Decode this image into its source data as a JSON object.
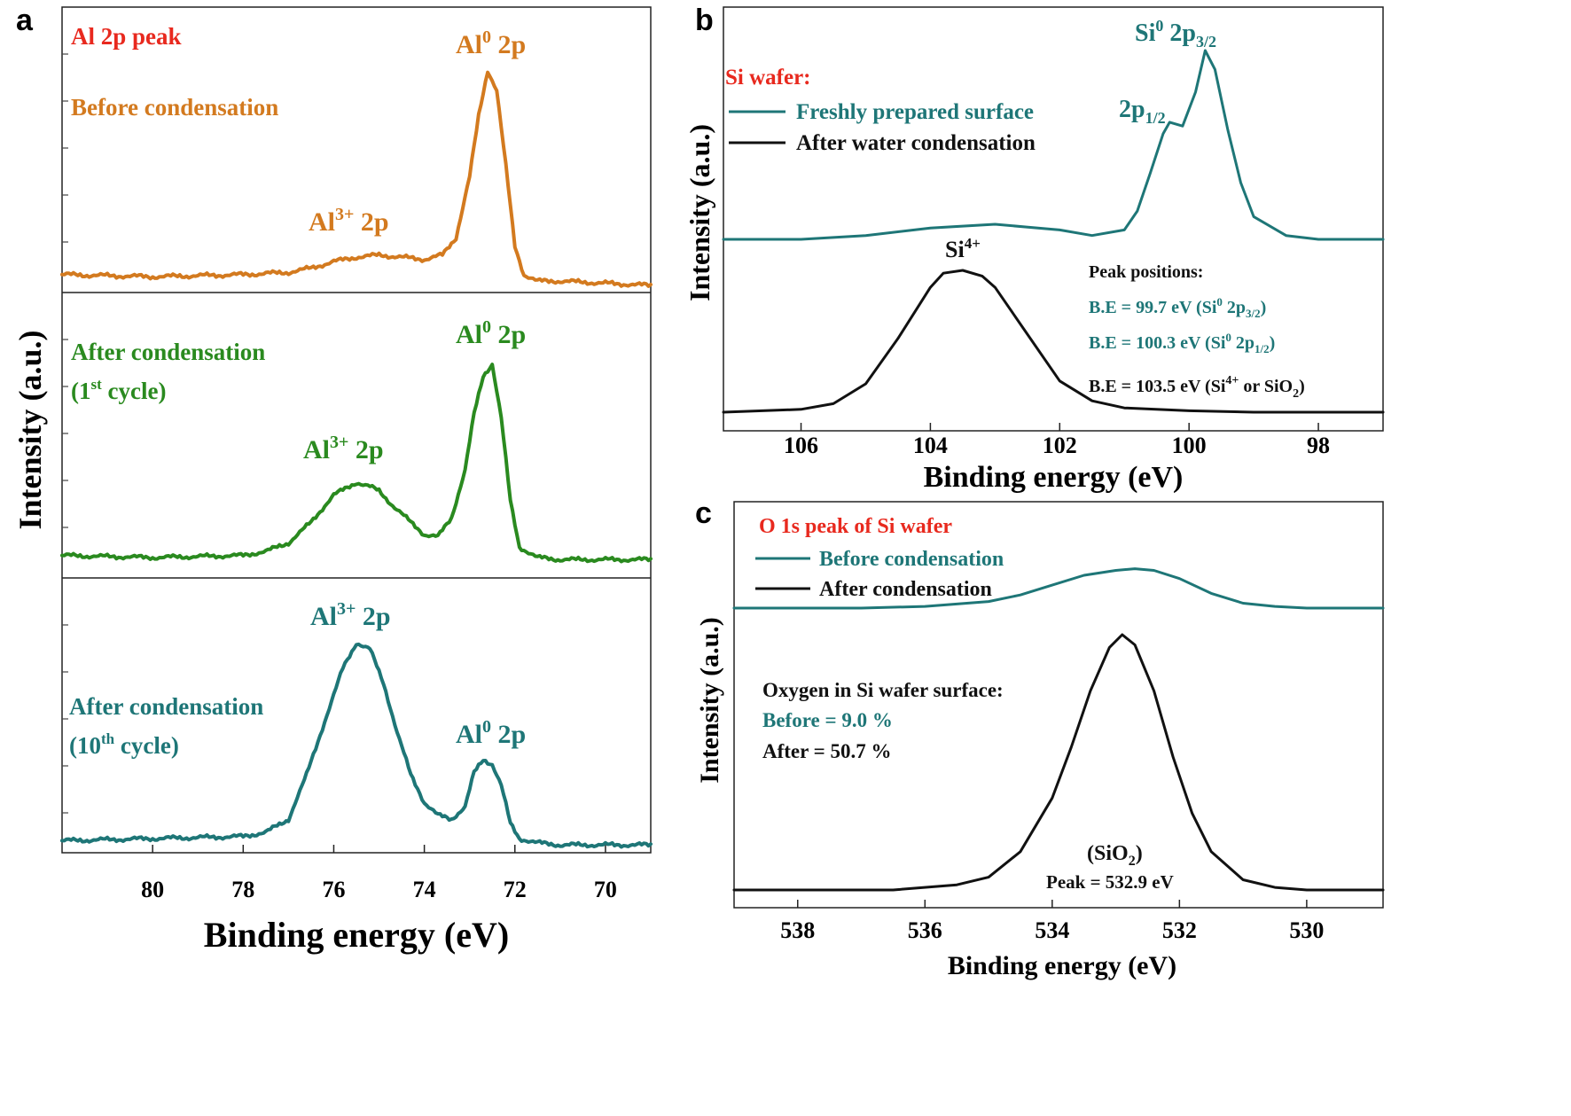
{
  "colors": {
    "orange": "#d37a1f",
    "green": "#2a8a1f",
    "teal": "#1e7677",
    "black": "#111111",
    "red": "#e8291e"
  },
  "panels": {
    "a": "a",
    "b": "b",
    "c": "c"
  },
  "chart_data": [
    {
      "id": "a",
      "type": "line",
      "xlabel": "Binding energy (eV)",
      "ylabel": "Intensity (a.u.)",
      "xlim": [
        82,
        69
      ],
      "xticks": [
        "80",
        "78",
        "76",
        "74",
        "72",
        "70"
      ],
      "title": "Al 2p peak",
      "subplots": [
        {
          "color_key": "orange",
          "legend": "Before condensation",
          "peak_labels": {
            "metal_pre": "Al",
            "metal_sup": "0",
            "metal_post": " 2p",
            "oxide_pre": "Al",
            "oxide_sup": "3+",
            "oxide_post": " 2p"
          },
          "series": {
            "name": "Before condensation",
            "x": [
              82.0,
              80.0,
              78.0,
              77.0,
              76.5,
              76.0,
              75.5,
              75.0,
              74.5,
              74.0,
              73.6,
              73.3,
              73.0,
              72.8,
              72.6,
              72.4,
              72.2,
              72.0,
              71.8,
              71.5,
              71.0,
              70.0,
              69.0
            ],
            "y": [
              0.05,
              0.04,
              0.05,
              0.06,
              0.08,
              0.11,
              0.13,
              0.14,
              0.13,
              0.12,
              0.14,
              0.22,
              0.5,
              0.78,
              0.99,
              0.9,
              0.55,
              0.18,
              0.05,
              0.02,
              0.02,
              0.01,
              0.0
            ]
          }
        },
        {
          "color_key": "green",
          "legend": "After condensation",
          "legend_line2_pre": "(1",
          "legend_line2_sup": "st",
          "legend_line2_post": " cycle)",
          "peak_labels": {
            "metal_pre": "Al",
            "metal_sup": "0",
            "metal_post": " 2p",
            "oxide_pre": "Al",
            "oxide_sup": "3+",
            "oxide_post": " 2p"
          },
          "series": {
            "name": "After condensation (1st cycle)",
            "x": [
              82.0,
              80.0,
              78.0,
              77.5,
              77.0,
              76.5,
              76.0,
              75.5,
              75.2,
              75.0,
              74.7,
              74.3,
              74.0,
              73.7,
              73.4,
              73.1,
              72.9,
              72.7,
              72.5,
              72.3,
              72.1,
              71.9,
              71.5,
              71.0,
              69.0
            ],
            "y": [
              0.04,
              0.03,
              0.04,
              0.06,
              0.1,
              0.2,
              0.33,
              0.39,
              0.37,
              0.35,
              0.28,
              0.2,
              0.14,
              0.13,
              0.22,
              0.45,
              0.72,
              0.9,
              0.96,
              0.7,
              0.3,
              0.08,
              0.03,
              0.02,
              0.02
            ]
          }
        },
        {
          "color_key": "teal",
          "legend": "After condensation",
          "legend_line2_pre": "(10",
          "legend_line2_sup": "th",
          "legend_line2_post": " cycle)",
          "peak_labels": {
            "metal_pre": "Al",
            "metal_sup": "0",
            "metal_post": " 2p",
            "oxide_pre": "Al",
            "oxide_sup": "3+",
            "oxide_post": " 2p"
          },
          "series": {
            "name": "After condensation (10th cycle)",
            "x": [
              82.0,
              80.0,
              78.0,
              77.5,
              77.0,
              76.6,
              76.2,
              75.8,
              75.5,
              75.2,
              74.9,
              74.6,
              74.3,
              74.0,
              73.7,
              73.4,
              73.1,
              72.9,
              72.7,
              72.5,
              72.3,
              72.1,
              71.9,
              71.5,
              71.0,
              69.0
            ],
            "y": [
              0.04,
              0.05,
              0.06,
              0.08,
              0.14,
              0.35,
              0.6,
              0.85,
              0.97,
              0.94,
              0.78,
              0.55,
              0.35,
              0.22,
              0.16,
              0.14,
              0.2,
              0.36,
              0.42,
              0.4,
              0.3,
              0.12,
              0.05,
              0.03,
              0.02,
              0.02
            ]
          }
        }
      ]
    },
    {
      "id": "b",
      "type": "line",
      "xlabel": "Binding energy (eV)",
      "ylabel": "Intensity (a.u.)",
      "xlim": [
        107.2,
        97.0
      ],
      "xticks": [
        106,
        104,
        102,
        100,
        98
      ],
      "legend_title": "Si wafer:",
      "legend_placement": "top-left",
      "series": [
        {
          "name": "Freshly prepared surface",
          "color_key": "teal",
          "x": [
            107.2,
            106.0,
            105.0,
            104.0,
            103.0,
            102.0,
            101.5,
            101.0,
            100.8,
            100.6,
            100.4,
            100.3,
            100.1,
            99.9,
            99.75,
            99.6,
            99.4,
            99.2,
            99.0,
            98.5,
            98.0,
            97.0
          ],
          "y": [
            0.0,
            0.0,
            0.02,
            0.06,
            0.08,
            0.05,
            0.02,
            0.05,
            0.15,
            0.35,
            0.56,
            0.62,
            0.6,
            0.78,
            1.0,
            0.9,
            0.58,
            0.3,
            0.12,
            0.02,
            0.0,
            0.0
          ]
        },
        {
          "name": "After water condensation",
          "color_key": "black",
          "x": [
            107.2,
            106.0,
            105.5,
            105.0,
            104.5,
            104.0,
            103.8,
            103.5,
            103.2,
            103.0,
            102.5,
            102.0,
            101.5,
            101.0,
            100.0,
            99.0,
            97.0
          ],
          "y": [
            0.0,
            0.02,
            0.06,
            0.2,
            0.52,
            0.88,
            0.98,
            1.0,
            0.96,
            0.88,
            0.55,
            0.22,
            0.08,
            0.03,
            0.01,
            0.0,
            0.0
          ]
        }
      ],
      "annotations": {
        "si0_pre": "Si",
        "si0_sup": "0",
        "si0_post": " 2p",
        "si0_sub": "3/2",
        "p12_pre": "2p",
        "p12_sub": "1/2",
        "si4_pre": "Si",
        "si4_sup": "4+",
        "peak_title": "Peak positions:",
        "line1_pre": "B.E = 99.7 eV (Si",
        "line1_sup": "0",
        "line1_mid": " 2p",
        "line1_sub": "3/2",
        "line1_post": ")",
        "line2_pre": "B.E = 100.3 eV (Si",
        "line2_sup": "0",
        "line2_mid": " 2p",
        "line2_sub": "1/2",
        "line2_post": ")",
        "line3_pre": "B.E = 103.5 eV (Si",
        "line3_sup": "4+",
        "line3_mid": " or SiO",
        "line3_sub": "2",
        "line3_post": ")"
      }
    },
    {
      "id": "c",
      "type": "line",
      "xlabel": "Binding energy (eV)",
      "ylabel": "Intensity (a.u.)",
      "xlim": [
        539.0,
        528.8
      ],
      "xticks": [
        538,
        536,
        534,
        532,
        530
      ],
      "legend_title": "O 1s peak of Si wafer",
      "legend_placement": "top-left",
      "series": [
        {
          "name": "Before condensation",
          "color_key": "teal",
          "x": [
            539.0,
            537.0,
            536.0,
            535.0,
            534.5,
            534.0,
            533.5,
            533.0,
            532.7,
            532.4,
            532.0,
            531.5,
            531.0,
            530.5,
            530.0,
            528.8
          ],
          "y": [
            0.0,
            0.0,
            0.01,
            0.04,
            0.08,
            0.14,
            0.2,
            0.23,
            0.24,
            0.23,
            0.18,
            0.09,
            0.03,
            0.01,
            0.0,
            0.0
          ]
        },
        {
          "name": "After condensation",
          "color_key": "black",
          "x": [
            539.0,
            536.5,
            535.5,
            535.0,
            534.5,
            534.0,
            533.7,
            533.4,
            533.1,
            532.9,
            532.7,
            532.4,
            532.1,
            531.8,
            531.5,
            531.0,
            530.5,
            530.0,
            528.8
          ],
          "y": [
            0.0,
            0.0,
            0.02,
            0.05,
            0.15,
            0.36,
            0.56,
            0.78,
            0.95,
            1.0,
            0.96,
            0.78,
            0.52,
            0.3,
            0.15,
            0.04,
            0.01,
            0.0,
            0.0
          ]
        }
      ],
      "annotations": {
        "oxygen_title": "Oxygen in Si wafer surface:",
        "before": "Before = 9.0 %",
        "after": "After = 50.7 %",
        "sio2_pre": "(SiO",
        "sio2_sub": "2",
        "sio2_post": ")",
        "peak": "Peak = 532.9 eV"
      }
    }
  ]
}
